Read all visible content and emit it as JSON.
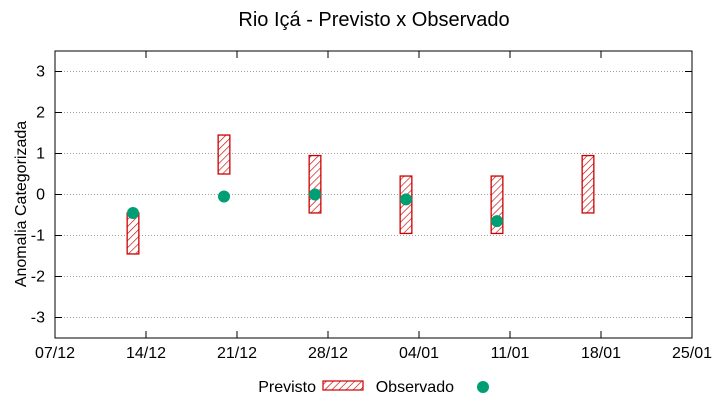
{
  "chart_data": {
    "type": "range-bar-scatter",
    "title": "Rio Içá - Previsto x Observado",
    "xlabel": "",
    "ylabel": "Anomalia Categorizada",
    "ylim": [
      -3.5,
      3.5
    ],
    "yticks": [
      -3,
      -2,
      -1,
      0,
      1,
      2,
      3
    ],
    "yticklabels": [
      "-3",
      "-2",
      "-1",
      "0",
      "1",
      "2",
      "3"
    ],
    "xlim": [
      0,
      49
    ],
    "xticks": [
      0,
      7,
      14,
      21,
      28,
      35,
      42,
      49
    ],
    "xticklabels": [
      "07/12",
      "14/12",
      "21/12",
      "28/12",
      "04/01",
      "11/01",
      "18/01",
      "25/01"
    ],
    "grid": true,
    "legend_position": "bottom",
    "series": [
      {
        "name": "Previsto",
        "kind": "range",
        "style": "hatched red box",
        "points": [
          {
            "x": 6,
            "low": -1.45,
            "high": -0.45
          },
          {
            "x": 13,
            "low": 0.5,
            "high": 1.45
          },
          {
            "x": 20,
            "low": -0.45,
            "high": 0.95
          },
          {
            "x": 27,
            "low": -0.95,
            "high": 0.45
          },
          {
            "x": 34,
            "low": -0.95,
            "high": 0.45
          },
          {
            "x": 41,
            "low": -0.45,
            "high": 0.95
          }
        ]
      },
      {
        "name": "Observado",
        "kind": "point",
        "style": "green dot",
        "points": [
          {
            "x": 6,
            "y": -0.45
          },
          {
            "x": 13,
            "y": -0.05
          },
          {
            "x": 20,
            "y": 0.0
          },
          {
            "x": 27,
            "y": -0.12
          },
          {
            "x": 34,
            "y": -0.65
          }
        ]
      }
    ],
    "colors": {
      "previsto": "#cc0000",
      "observado": "#009e73",
      "grid": "#a0a0a0"
    }
  }
}
